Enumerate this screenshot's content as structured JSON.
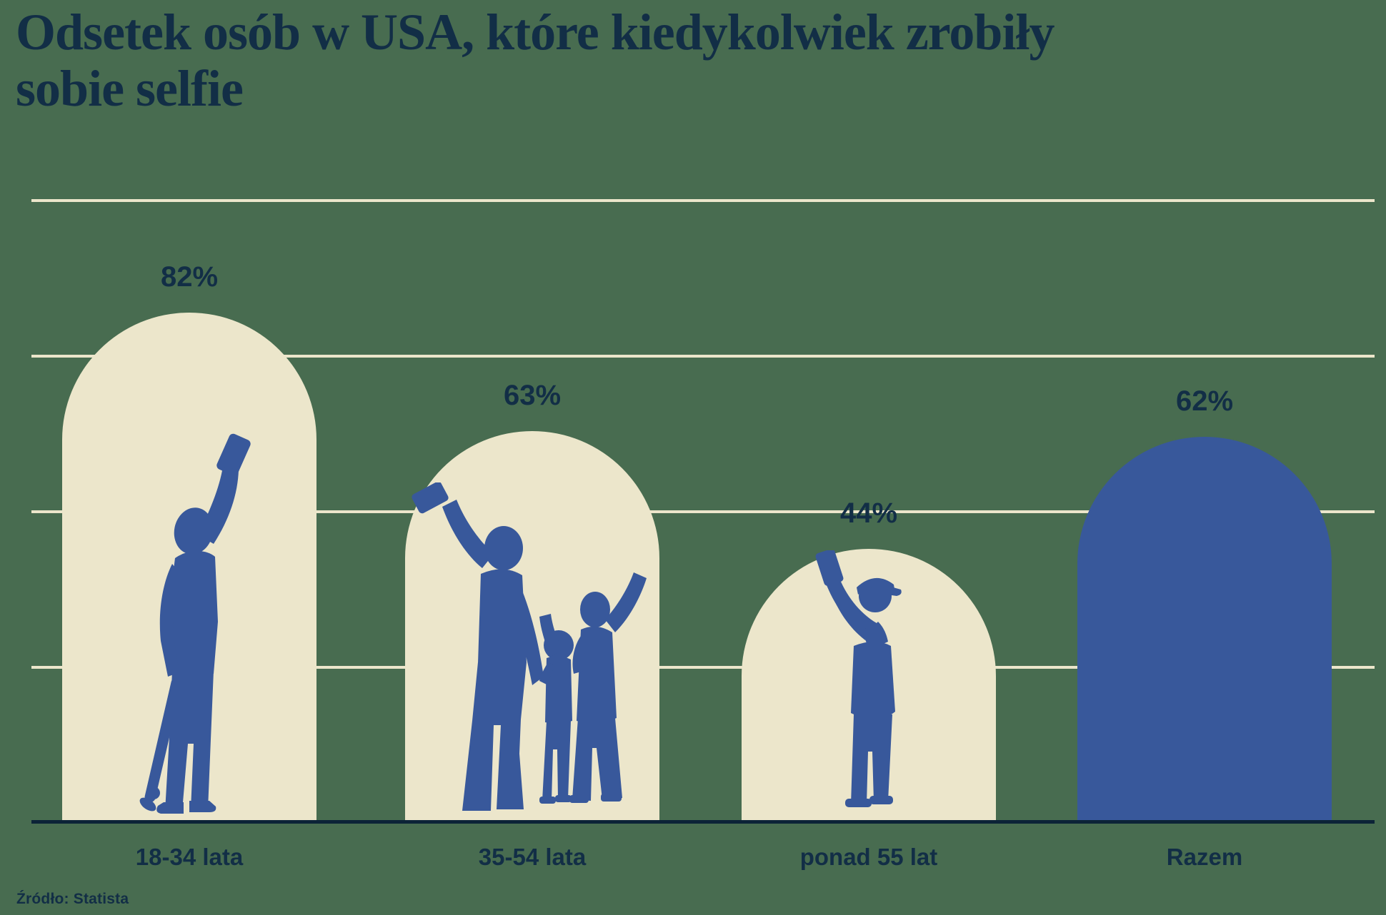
{
  "title": {
    "line1": "Odsetek osób w USA, które kiedykolwiek zrobiły",
    "line2": "sobie selfie"
  },
  "source": {
    "text": "Źródło: Statista"
  },
  "colors": {
    "background": "#486C50",
    "bar_default": "#ECE6CB",
    "bar_highlight": "#38589B",
    "figure_silhouette": "#38589B",
    "gridline": "#ECE6CB",
    "axis_line": "#0C2337",
    "text": "#122E46"
  },
  "chart_data": {
    "type": "bar",
    "title": "Odsetek osób w USA, które kiedykolwiek zrobiły sobie selfie",
    "categories": [
      "18-34 lata",
      "35-54 lata",
      "ponad 55 lat",
      "Razem"
    ],
    "values": [
      82,
      63,
      44,
      62
    ],
    "value_labels": [
      "82%",
      "63%",
      "44%",
      "62%"
    ],
    "series": [
      {
        "name": "Odsetek osób",
        "values": [
          82,
          63,
          44,
          62
        ]
      }
    ],
    "ylim": [
      0,
      100
    ],
    "gridlines_pct": [
      25,
      50,
      75,
      100
    ],
    "grid": true,
    "legend": false,
    "bar_shape": "arch",
    "bar_colors": [
      "#ECE6CB",
      "#ECE6CB",
      "#ECE6CB",
      "#38589B"
    ],
    "figures": [
      "young-person-selfie-skateboard",
      "family-selfie",
      "senior-selfie",
      null
    ],
    "source": "Statista"
  }
}
